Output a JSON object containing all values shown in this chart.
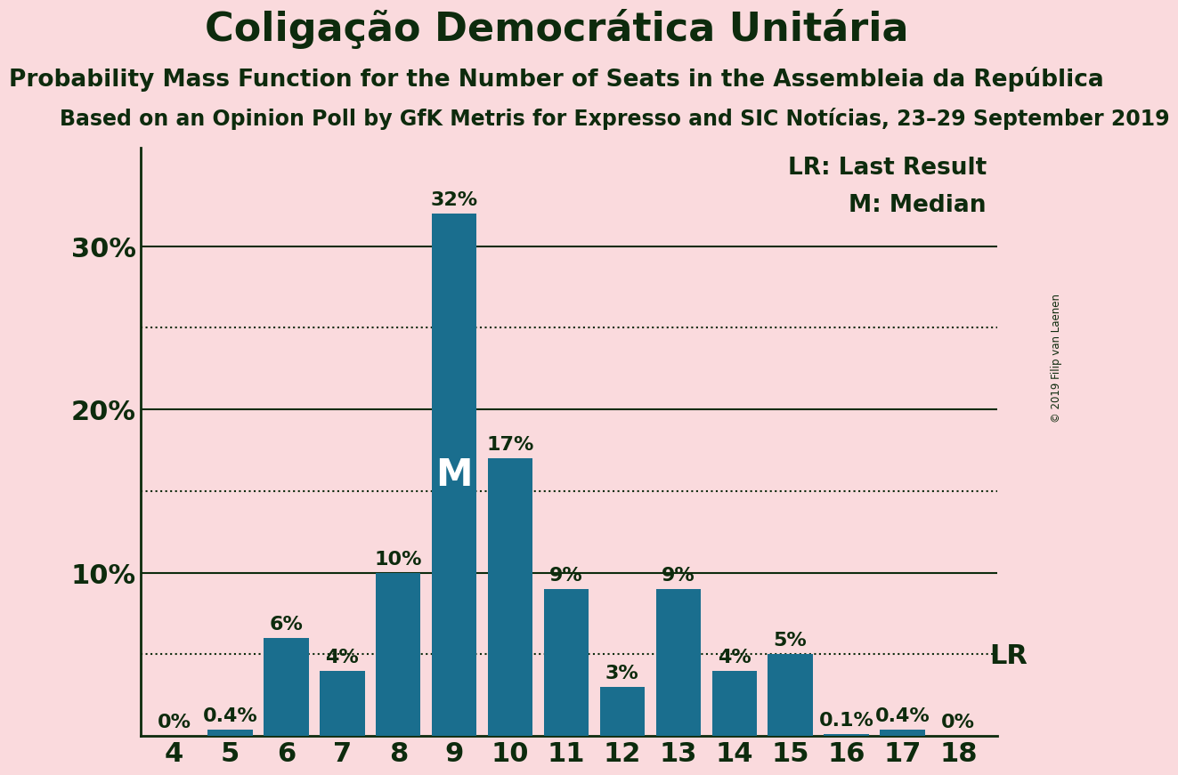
{
  "title": "Coligação Democrática Unitária",
  "subtitle": "Probability Mass Function for the Number of Seats in the Assembleia da República",
  "source": "Based on an Opinion Poll by GfK Metris for Expresso and SIC Notícias, 23–29 September 2019",
  "copyright": "© 2019 Filip van Laenen",
  "categories": [
    4,
    5,
    6,
    7,
    8,
    9,
    10,
    11,
    12,
    13,
    14,
    15,
    16,
    17,
    18
  ],
  "values": [
    0.0,
    0.4,
    6.0,
    4.0,
    10.0,
    32.0,
    17.0,
    9.0,
    3.0,
    9.0,
    4.0,
    5.0,
    0.1,
    0.4,
    0.0
  ],
  "bar_color": "#1a6e8e",
  "background_color": "#fadadd",
  "text_color": "#0d2b0d",
  "median_seat": 9,
  "median_label": "M",
  "lr_value": 5.0,
  "lr_label": "LR",
  "lr_legend": "LR: Last Result",
  "m_legend": "M: Median",
  "yticks": [
    10,
    20,
    30
  ],
  "ytick_labels": [
    "10%",
    "20%",
    "30%"
  ],
  "solid_lines": [
    10,
    20,
    30
  ],
  "dotted_lines": [
    5,
    15,
    25
  ],
  "ylim": [
    0,
    36
  ],
  "title_fontsize": 32,
  "subtitle_fontsize": 19,
  "source_fontsize": 17,
  "bar_label_fontsize": 16,
  "ytick_fontsize": 22,
  "xtick_fontsize": 22,
  "legend_fontsize": 19,
  "median_label_fontsize": 30
}
